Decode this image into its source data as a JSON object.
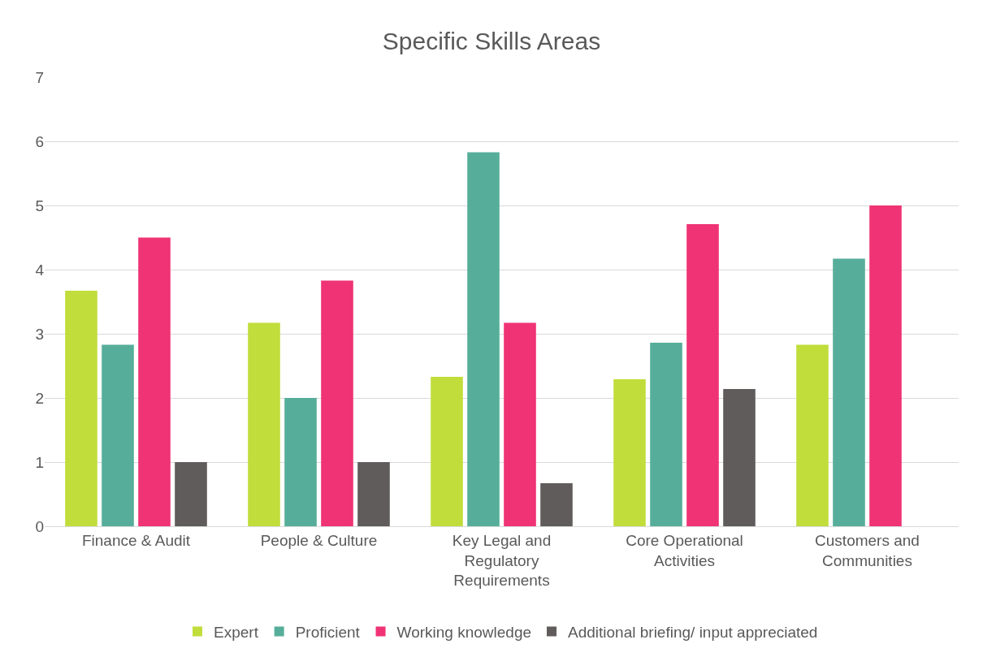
{
  "chart_data": {
    "type": "bar",
    "title": "Specific Skills Areas",
    "categories": [
      "Finance & Audit",
      "People & Culture",
      "Key Legal and Regulatory Requirements",
      "Core Operational Activities",
      "Customers and Communities"
    ],
    "series": [
      {
        "name": "Expert",
        "color": "#c0dd3b",
        "values": [
          3.67,
          3.17,
          2.33,
          2.29,
          2.83
        ]
      },
      {
        "name": "Proficient",
        "color": "#56ae9a",
        "values": [
          2.83,
          2.0,
          5.83,
          2.86,
          4.17
        ]
      },
      {
        "name": "Working knowledge",
        "color": "#ef3374",
        "values": [
          4.5,
          3.83,
          3.17,
          4.71,
          5.0
        ]
      },
      {
        "name": "Additional briefing/ input appreciated",
        "color": "#605c5b",
        "values": [
          1.0,
          1.0,
          0.67,
          2.14,
          null
        ]
      }
    ],
    "ylim": [
      0,
      7
    ],
    "yticks": [
      0,
      1,
      2,
      3,
      4,
      5,
      6,
      7
    ],
    "grid": "y",
    "legend": "bottom"
  }
}
